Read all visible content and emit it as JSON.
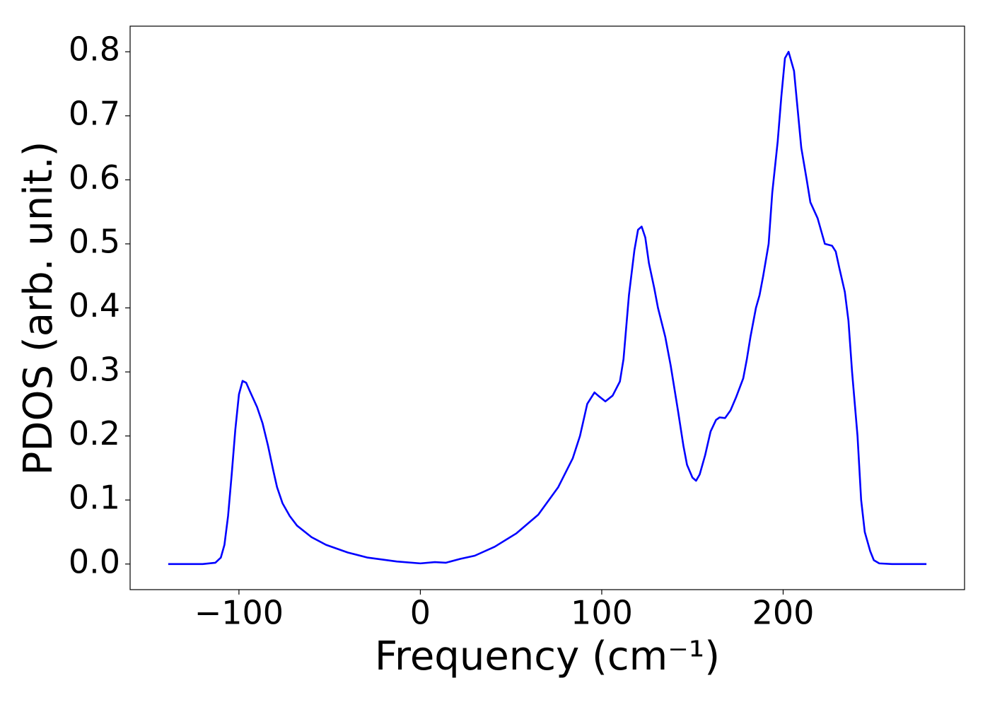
{
  "chart_data": {
    "type": "line",
    "xlabel": "Frequency (cm⁻¹)",
    "ylabel": "PDOS (arb. unit.)",
    "xlim": [
      -160,
      300
    ],
    "ylim": [
      -0.04,
      0.84
    ],
    "xticks": [
      {
        "value": -100,
        "label": "−100"
      },
      0,
      100,
      200
    ],
    "yticks": [
      {
        "value": 0,
        "label": "0.0"
      },
      0.1,
      0.2,
      0.3,
      0.4,
      0.5,
      0.6,
      0.7,
      0.8
    ],
    "x": [
      -139,
      -120,
      -113,
      -110,
      -108,
      -106,
      -104,
      -102,
      -100,
      -98,
      -96,
      -94,
      -90,
      -87,
      -84,
      -81,
      -79,
      -76,
      -72,
      -68,
      -60,
      -52,
      -40,
      -29,
      -13,
      0,
      8,
      14,
      22,
      30,
      41,
      53,
      65,
      76,
      84,
      88,
      92,
      96,
      98,
      102,
      106,
      110,
      112,
      115,
      118,
      120,
      122,
      124,
      126,
      129,
      131,
      135,
      138,
      142,
      145,
      147,
      150,
      152,
      154,
      157,
      160,
      163,
      165,
      168,
      171,
      174,
      178,
      180,
      182,
      185,
      187,
      189,
      192,
      194,
      197,
      199,
      201,
      203,
      206,
      208,
      210,
      213,
      215,
      219,
      223,
      227,
      229,
      231,
      234,
      236,
      238,
      241,
      243,
      245,
      248,
      250,
      253,
      260,
      279
    ],
    "series": [
      {
        "name": "PDOS",
        "color": "#0000ff",
        "values": [
          0,
          0,
          0.002,
          0.01,
          0.03,
          0.075,
          0.14,
          0.21,
          0.265,
          0.286,
          0.283,
          0.27,
          0.245,
          0.22,
          0.185,
          0.145,
          0.12,
          0.095,
          0.075,
          0.06,
          0.042,
          0.03,
          0.018,
          0.01,
          0.004,
          0.001,
          0.003,
          0.002,
          0.008,
          0.013,
          0.027,
          0.048,
          0.077,
          0.12,
          0.165,
          0.2,
          0.25,
          0.268,
          0.263,
          0.254,
          0.263,
          0.285,
          0.32,
          0.42,
          0.49,
          0.522,
          0.527,
          0.51,
          0.47,
          0.43,
          0.4,
          0.355,
          0.31,
          0.24,
          0.185,
          0.155,
          0.135,
          0.13,
          0.14,
          0.17,
          0.207,
          0.225,
          0.229,
          0.228,
          0.24,
          0.26,
          0.29,
          0.32,
          0.355,
          0.4,
          0.42,
          0.45,
          0.5,
          0.58,
          0.66,
          0.73,
          0.79,
          0.8,
          0.77,
          0.71,
          0.65,
          0.6,
          0.565,
          0.54,
          0.5,
          0.497,
          0.488,
          0.462,
          0.425,
          0.38,
          0.3,
          0.2,
          0.1,
          0.05,
          0.02,
          0.006,
          0.001,
          0,
          0
        ]
      }
    ]
  }
}
